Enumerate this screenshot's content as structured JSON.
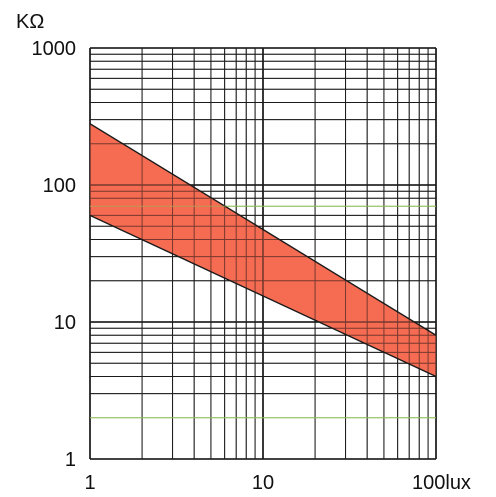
{
  "chart_data": {
    "type": "area",
    "title": "",
    "ylabel": "KΩ",
    "xlabel": "",
    "x_scale": "log",
    "y_scale": "log",
    "xlim": [
      1,
      100
    ],
    "ylim": [
      1,
      1000
    ],
    "x_ticks": [
      {
        "value": 1,
        "label": "1"
      },
      {
        "value": 10,
        "label": "10"
      },
      {
        "value": 100,
        "label": "100lux"
      }
    ],
    "y_ticks": [
      {
        "value": 1,
        "label": "1"
      },
      {
        "value": 10,
        "label": "10"
      },
      {
        "value": 100,
        "label": "100"
      },
      {
        "value": 1000,
        "label": "1000"
      }
    ],
    "grid": true,
    "band": {
      "upper": [
        {
          "x": 1,
          "y": 280
        },
        {
          "x": 100,
          "y": 8
        }
      ],
      "lower": [
        {
          "x": 1,
          "y": 60
        },
        {
          "x": 100,
          "y": 4
        }
      ]
    },
    "colors": {
      "band_fill": "#f5644a",
      "band_edge": "#1a1a1a",
      "grid": "#1a1a1a",
      "accent_grid": "#8fbf5a"
    }
  }
}
